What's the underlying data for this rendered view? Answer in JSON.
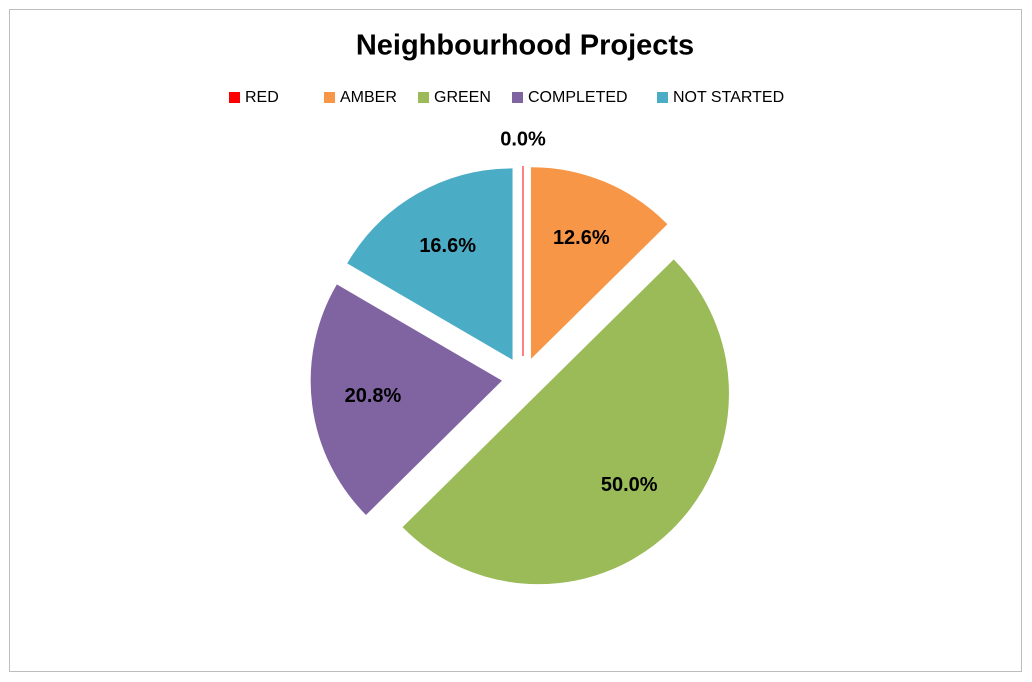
{
  "chart_data": {
    "type": "pie",
    "title": "Neighbourhood Projects",
    "categories": [
      "RED",
      "AMBER",
      "GREEN",
      "COMPLETED",
      "NOT STARTED"
    ],
    "values": [
      0.0,
      12.6,
      50.0,
      20.8,
      16.6
    ],
    "value_labels": [
      "0.0%",
      "12.6%",
      "50.0%",
      "20.8%",
      "16.6%"
    ],
    "colors": [
      "#ff0000",
      "#f79646",
      "#9bbb59",
      "#8064a2",
      "#4bacc6"
    ],
    "legend": "top"
  }
}
